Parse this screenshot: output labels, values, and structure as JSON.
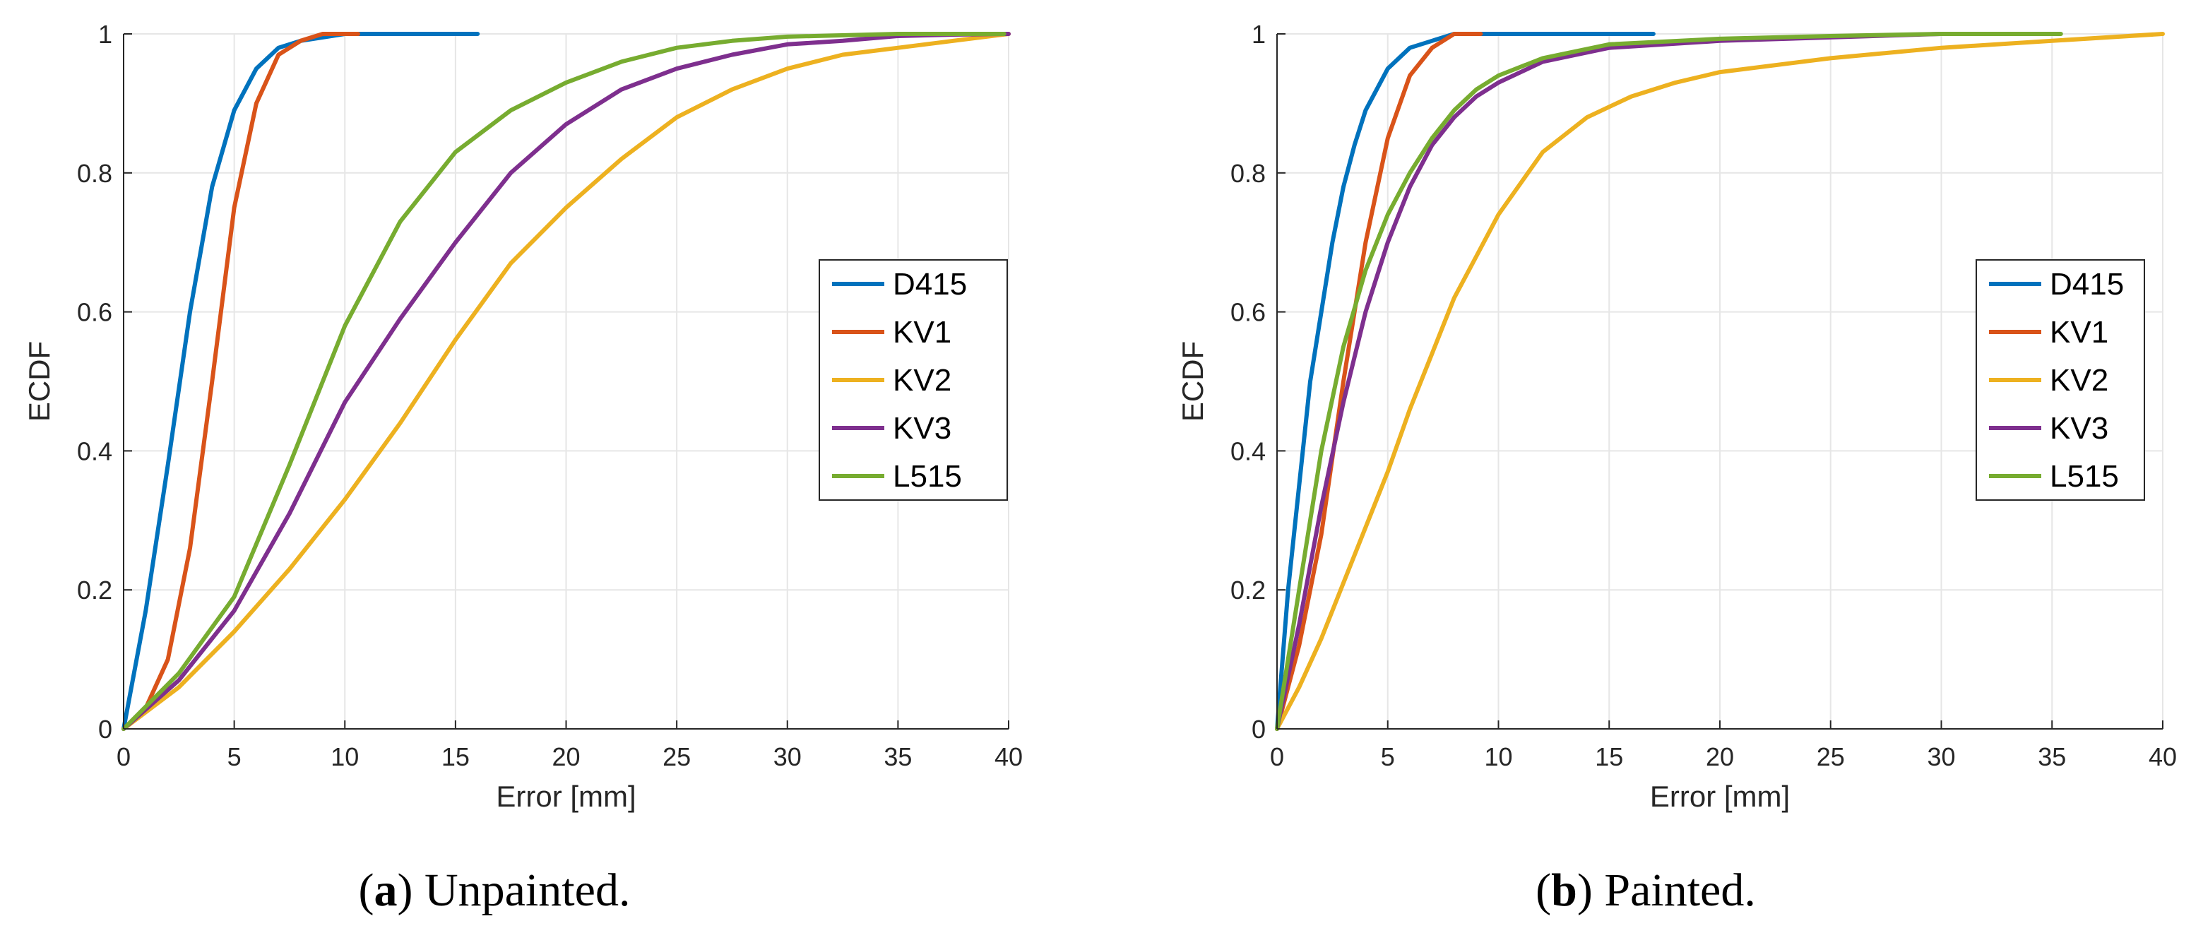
{
  "chart_data": [
    {
      "type": "line",
      "caption_letter": "a",
      "caption_text": "Unpainted.",
      "xlabel": "Error [mm]",
      "ylabel": "ECDF",
      "xlim": [
        0,
        40
      ],
      "ylim": [
        0,
        1
      ],
      "xticks": [
        0,
        5,
        10,
        15,
        20,
        25,
        30,
        35,
        40
      ],
      "yticks": [
        0,
        0.2,
        0.4,
        0.6,
        0.8,
        1
      ],
      "ytick_labels": [
        "0",
        "0.2",
        "0.4",
        "0.6",
        "0.8",
        "1"
      ],
      "grid": true,
      "legend_position": "right",
      "series": [
        {
          "name": "D415",
          "color": "#0072BD",
          "points": [
            [
              0,
              0
            ],
            [
              1,
              0.17
            ],
            [
              2,
              0.38
            ],
            [
              3,
              0.6
            ],
            [
              4,
              0.78
            ],
            [
              5,
              0.89
            ],
            [
              6,
              0.95
            ],
            [
              7,
              0.98
            ],
            [
              8,
              0.99
            ],
            [
              10,
              1
            ],
            [
              16,
              1
            ]
          ]
        },
        {
          "name": "KV1",
          "color": "#D95319",
          "points": [
            [
              0,
              0
            ],
            [
              1,
              0.03
            ],
            [
              2,
              0.1
            ],
            [
              3,
              0.26
            ],
            [
              4,
              0.5
            ],
            [
              5,
              0.75
            ],
            [
              6,
              0.9
            ],
            [
              7,
              0.97
            ],
            [
              8,
              0.99
            ],
            [
              9,
              1
            ],
            [
              10.6,
              1
            ]
          ]
        },
        {
          "name": "KV2",
          "color": "#EDB120",
          "points": [
            [
              0,
              0
            ],
            [
              2.5,
              0.06
            ],
            [
              5,
              0.14
            ],
            [
              7.5,
              0.23
            ],
            [
              10,
              0.33
            ],
            [
              12.5,
              0.44
            ],
            [
              15,
              0.56
            ],
            [
              17.5,
              0.67
            ],
            [
              20,
              0.75
            ],
            [
              22.5,
              0.82
            ],
            [
              25,
              0.88
            ],
            [
              27.5,
              0.92
            ],
            [
              30,
              0.95
            ],
            [
              32.5,
              0.97
            ],
            [
              35,
              0.98
            ],
            [
              37.5,
              0.99
            ],
            [
              40,
              1
            ]
          ]
        },
        {
          "name": "KV3",
          "color": "#7E2F8E",
          "points": [
            [
              0,
              0
            ],
            [
              2.5,
              0.07
            ],
            [
              5,
              0.17
            ],
            [
              7.5,
              0.31
            ],
            [
              10,
              0.47
            ],
            [
              12.5,
              0.59
            ],
            [
              15,
              0.7
            ],
            [
              17.5,
              0.8
            ],
            [
              20,
              0.87
            ],
            [
              22.5,
              0.92
            ],
            [
              25,
              0.95
            ],
            [
              27.5,
              0.97
            ],
            [
              30,
              0.985
            ],
            [
              32.5,
              0.99
            ],
            [
              35,
              0.997
            ],
            [
              37.5,
              0.999
            ],
            [
              40,
              1
            ]
          ]
        },
        {
          "name": "L515",
          "color": "#77AC30",
          "points": [
            [
              0,
              0
            ],
            [
              2.5,
              0.08
            ],
            [
              5,
              0.19
            ],
            [
              7.5,
              0.38
            ],
            [
              10,
              0.58
            ],
            [
              12.5,
              0.73
            ],
            [
              15,
              0.83
            ],
            [
              17.5,
              0.89
            ],
            [
              20,
              0.93
            ],
            [
              22.5,
              0.96
            ],
            [
              25,
              0.98
            ],
            [
              27.5,
              0.99
            ],
            [
              30,
              0.996
            ],
            [
              35,
              1
            ],
            [
              39.8,
              1
            ]
          ]
        }
      ]
    },
    {
      "type": "line",
      "caption_letter": "b",
      "caption_text": "Painted.",
      "xlabel": "Error [mm]",
      "ylabel": "ECDF",
      "xlim": [
        0,
        40
      ],
      "ylim": [
        0,
        1
      ],
      "xticks": [
        0,
        5,
        10,
        15,
        20,
        25,
        30,
        35,
        40
      ],
      "yticks": [
        0,
        0.2,
        0.4,
        0.6,
        0.8,
        1
      ],
      "ytick_labels": [
        "0",
        "0.2",
        "0.4",
        "0.6",
        "0.8",
        "1"
      ],
      "grid": true,
      "legend_position": "right",
      "series": [
        {
          "name": "D415",
          "color": "#0072BD",
          "points": [
            [
              0,
              0
            ],
            [
              0.5,
              0.2
            ],
            [
              1,
              0.35
            ],
            [
              1.5,
              0.5
            ],
            [
              2,
              0.6
            ],
            [
              2.5,
              0.7
            ],
            [
              3,
              0.78
            ],
            [
              3.5,
              0.84
            ],
            [
              4,
              0.89
            ],
            [
              5,
              0.95
            ],
            [
              6,
              0.98
            ],
            [
              7,
              0.99
            ],
            [
              8,
              1
            ],
            [
              17,
              1
            ]
          ]
        },
        {
          "name": "KV1",
          "color": "#D95319",
          "points": [
            [
              0,
              0
            ],
            [
              1,
              0.12
            ],
            [
              2,
              0.28
            ],
            [
              3,
              0.5
            ],
            [
              4,
              0.7
            ],
            [
              5,
              0.85
            ],
            [
              6,
              0.94
            ],
            [
              7,
              0.98
            ],
            [
              8,
              1
            ],
            [
              9.2,
              1
            ]
          ]
        },
        {
          "name": "KV2",
          "color": "#EDB120",
          "points": [
            [
              0,
              0
            ],
            [
              1,
              0.06
            ],
            [
              2,
              0.13
            ],
            [
              3,
              0.21
            ],
            [
              4,
              0.29
            ],
            [
              5,
              0.37
            ],
            [
              6,
              0.46
            ],
            [
              7,
              0.54
            ],
            [
              8,
              0.62
            ],
            [
              9,
              0.68
            ],
            [
              10,
              0.74
            ],
            [
              12,
              0.83
            ],
            [
              14,
              0.88
            ],
            [
              16,
              0.91
            ],
            [
              18,
              0.93
            ],
            [
              20,
              0.945
            ],
            [
              25,
              0.965
            ],
            [
              30,
              0.98
            ],
            [
              35,
              0.99
            ],
            [
              40,
              1
            ]
          ]
        },
        {
          "name": "KV3",
          "color": "#7E2F8E",
          "points": [
            [
              0,
              0
            ],
            [
              1,
              0.15
            ],
            [
              2,
              0.32
            ],
            [
              3,
              0.47
            ],
            [
              4,
              0.6
            ],
            [
              5,
              0.7
            ],
            [
              6,
              0.78
            ],
            [
              7,
              0.84
            ],
            [
              8,
              0.88
            ],
            [
              9,
              0.91
            ],
            [
              10,
              0.93
            ],
            [
              12,
              0.96
            ],
            [
              15,
              0.98
            ],
            [
              20,
              0.99
            ],
            [
              25,
              0.995
            ],
            [
              30,
              1
            ],
            [
              35.3,
              1
            ]
          ]
        },
        {
          "name": "L515",
          "color": "#77AC30",
          "points": [
            [
              0,
              0
            ],
            [
              1,
              0.2
            ],
            [
              2,
              0.4
            ],
            [
              3,
              0.55
            ],
            [
              4,
              0.66
            ],
            [
              5,
              0.74
            ],
            [
              6,
              0.8
            ],
            [
              7,
              0.85
            ],
            [
              8,
              0.89
            ],
            [
              9,
              0.92
            ],
            [
              10,
              0.94
            ],
            [
              12,
              0.965
            ],
            [
              15,
              0.985
            ],
            [
              20,
              0.993
            ],
            [
              25,
              0.997
            ],
            [
              30,
              1
            ],
            [
              35.4,
              1
            ]
          ]
        }
      ]
    }
  ]
}
